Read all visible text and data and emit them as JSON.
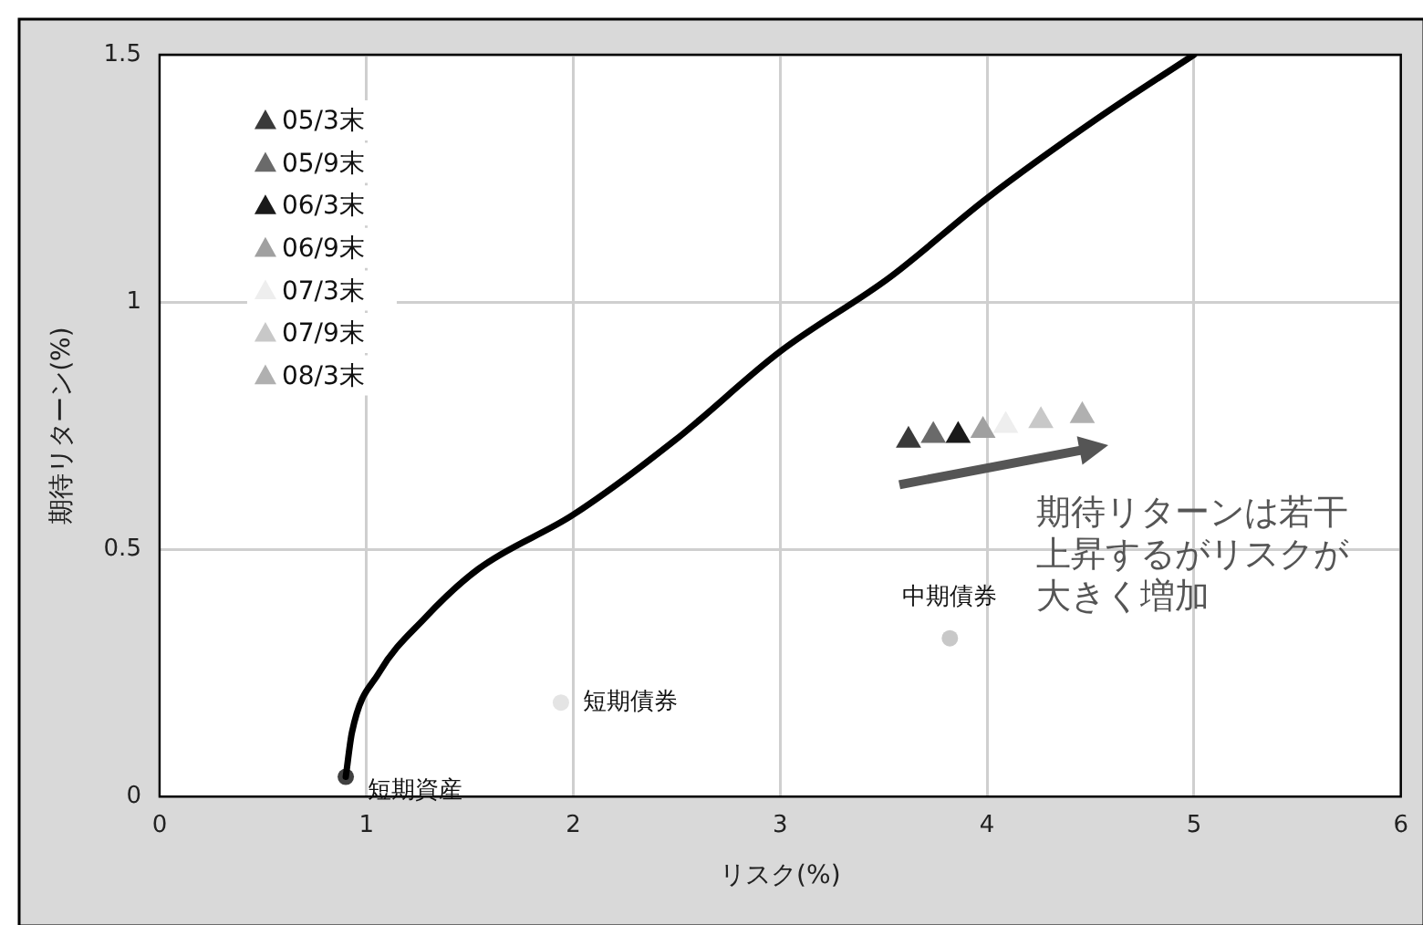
{
  "chart_data": {
    "type": "scatter",
    "xlabel": "リスク(%)",
    "ylabel": "期待リターン(%)",
    "xlim": [
      0,
      6
    ],
    "ylim": [
      0,
      1.5
    ],
    "xticks": [
      0,
      1,
      2,
      3,
      4,
      5,
      6
    ],
    "yticks": [
      0,
      0.5,
      1,
      1.5
    ],
    "grid": true,
    "legend": "top left",
    "series": [
      {
        "type": "line",
        "color": "#000000",
        "marker": "none",
        "x": [
          0.9,
          0.93,
          1.06,
          1.28,
          1.54,
          2.0,
          2.49,
          3.0,
          3.53,
          4.0,
          4.53,
          5.0
        ],
        "values": [
          0.04,
          0.13,
          0.25,
          0.36,
          0.46,
          0.57,
          0.72,
          0.9,
          1.05,
          1.21,
          1.37,
          1.5
        ]
      },
      {
        "type": "scatter",
        "marker": "circle",
        "colors": [
          "#404040",
          "#e4e4e4",
          "#c8c8c8"
        ],
        "x": [
          0.9,
          1.94,
          3.82
        ],
        "values": [
          0.04,
          0.19,
          0.32
        ]
      },
      {
        "name": "05/3末",
        "color": "#3a3a3a",
        "marker": "triangle",
        "x": [
          3.62
        ],
        "values": [
          0.72
        ]
      },
      {
        "name": "05/9末",
        "color": "#6a6a6a",
        "marker": "triangle",
        "x": [
          3.74
        ],
        "values": [
          0.73
        ]
      },
      {
        "name": "06/3末",
        "color": "#1a1a1a",
        "marker": "triangle",
        "x": [
          3.86
        ],
        "values": [
          0.73
        ]
      },
      {
        "name": "06/9末",
        "color": "#a0a0a0",
        "marker": "triangle",
        "x": [
          3.98
        ],
        "values": [
          0.74
        ]
      },
      {
        "name": "07/3末",
        "color": "#eeeeee",
        "marker": "triangle",
        "x": [
          4.09
        ],
        "values": [
          0.75
        ]
      },
      {
        "name": "07/9末",
        "color": "#c8c8c8",
        "marker": "triangle",
        "x": [
          4.26
        ],
        "values": [
          0.76
        ]
      },
      {
        "name": "08/3末",
        "color": "#b0b0b0",
        "marker": "triangle",
        "x": [
          4.46
        ],
        "values": [
          0.77
        ]
      }
    ],
    "annotations": [
      {
        "text": "短期資産",
        "x": 0.9,
        "y": 0.04
      },
      {
        "text": "短期債券",
        "x": 1.94,
        "y": 0.19
      },
      {
        "text": "中期債券",
        "x": 3.82,
        "y": 0.32
      },
      "期待リターンは若干上昇するがリスクが大きく増加"
    ]
  }
}
